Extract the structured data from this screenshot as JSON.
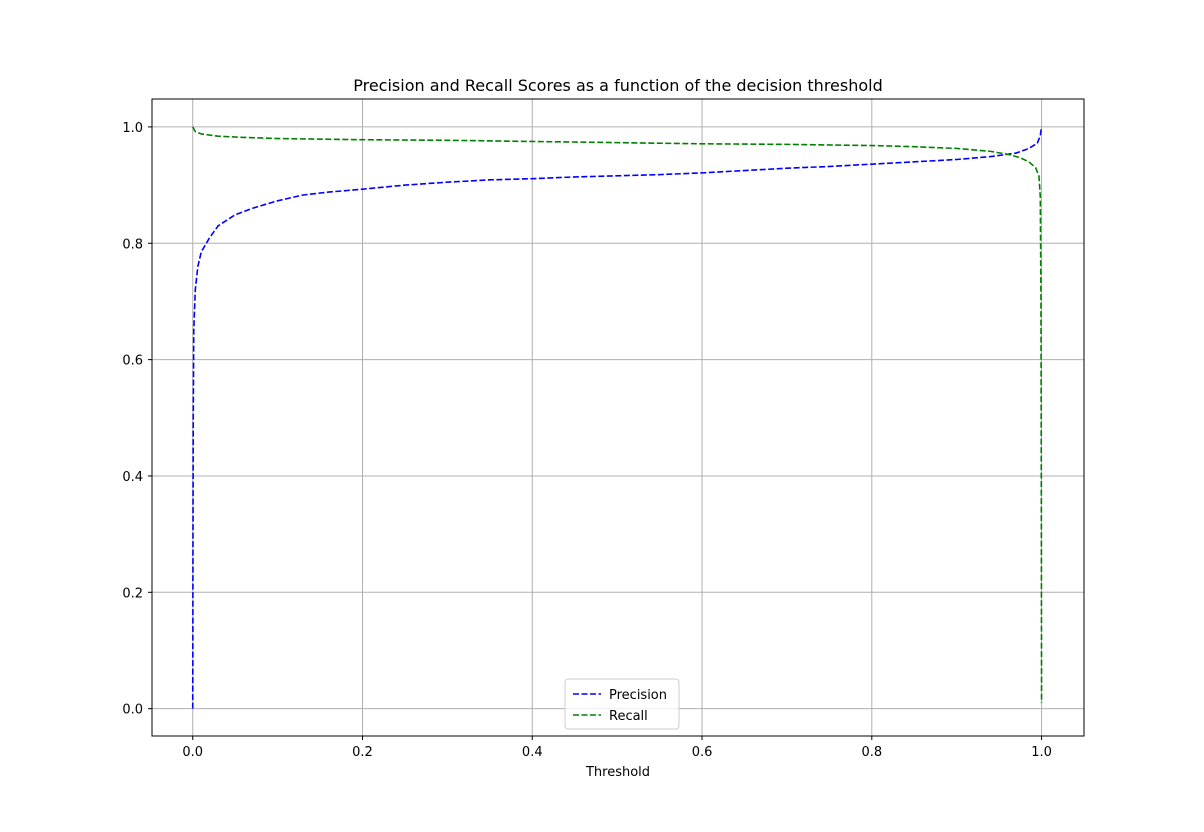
{
  "chart_data": {
    "type": "line",
    "title": "Precision and Recall Scores as a function of the decision threshold",
    "xlabel": "Threshold",
    "ylabel": "",
    "xlim": [
      -0.048,
      1.05
    ],
    "ylim": [
      -0.047,
      1.048
    ],
    "x_ticks": [
      0.0,
      0.2,
      0.4,
      0.6,
      0.8,
      1.0
    ],
    "x_tick_labels": [
      "0.0",
      "0.2",
      "0.4",
      "0.6",
      "0.8",
      "1.0"
    ],
    "y_ticks": [
      0.0,
      0.2,
      0.4,
      0.6,
      0.8,
      1.0
    ],
    "y_tick_labels": [
      "0.0",
      "0.2",
      "0.4",
      "0.6",
      "0.8",
      "1.0"
    ],
    "grid": true,
    "legend": {
      "placement": "lower center"
    },
    "series": [
      {
        "name": "Precision",
        "color": "#0000ff",
        "linestyle": "dashed",
        "points": [
          [
            0.0,
            0.0
          ],
          [
            0.0003,
            0.3
          ],
          [
            0.0006,
            0.5
          ],
          [
            0.0012,
            0.65
          ],
          [
            0.003,
            0.72
          ],
          [
            0.006,
            0.76
          ],
          [
            0.01,
            0.785
          ],
          [
            0.02,
            0.81
          ],
          [
            0.03,
            0.83
          ],
          [
            0.05,
            0.849
          ],
          [
            0.07,
            0.86
          ],
          [
            0.1,
            0.873
          ],
          [
            0.13,
            0.883
          ],
          [
            0.16,
            0.888
          ],
          [
            0.2,
            0.893
          ],
          [
            0.25,
            0.9
          ],
          [
            0.3,
            0.905
          ],
          [
            0.35,
            0.909
          ],
          [
            0.4,
            0.911
          ],
          [
            0.45,
            0.914
          ],
          [
            0.5,
            0.916
          ],
          [
            0.55,
            0.918
          ],
          [
            0.6,
            0.921
          ],
          [
            0.65,
            0.925
          ],
          [
            0.7,
            0.929
          ],
          [
            0.75,
            0.932
          ],
          [
            0.8,
            0.936
          ],
          [
            0.85,
            0.94
          ],
          [
            0.9,
            0.944
          ],
          [
            0.94,
            0.949
          ],
          [
            0.97,
            0.955
          ],
          [
            0.985,
            0.963
          ],
          [
            0.995,
            0.972
          ],
          [
            0.9985,
            0.985
          ],
          [
            1.0,
            1.0
          ]
        ]
      },
      {
        "name": "Recall",
        "color": "#008000",
        "linestyle": "dashed",
        "points": [
          [
            0.0,
            1.0
          ],
          [
            0.003,
            0.992
          ],
          [
            0.01,
            0.988
          ],
          [
            0.03,
            0.984
          ],
          [
            0.06,
            0.982
          ],
          [
            0.1,
            0.98
          ],
          [
            0.2,
            0.978
          ],
          [
            0.3,
            0.977
          ],
          [
            0.4,
            0.975
          ],
          [
            0.5,
            0.973
          ],
          [
            0.6,
            0.971
          ],
          [
            0.7,
            0.97
          ],
          [
            0.8,
            0.968
          ],
          [
            0.85,
            0.966
          ],
          [
            0.9,
            0.963
          ],
          [
            0.94,
            0.958
          ],
          [
            0.96,
            0.953
          ],
          [
            0.975,
            0.947
          ],
          [
            0.985,
            0.94
          ],
          [
            0.993,
            0.93
          ],
          [
            0.997,
            0.915
          ],
          [
            0.9985,
            0.88
          ],
          [
            0.9993,
            0.7
          ],
          [
            0.9997,
            0.4
          ],
          [
            1.0,
            0.01
          ]
        ]
      }
    ]
  }
}
